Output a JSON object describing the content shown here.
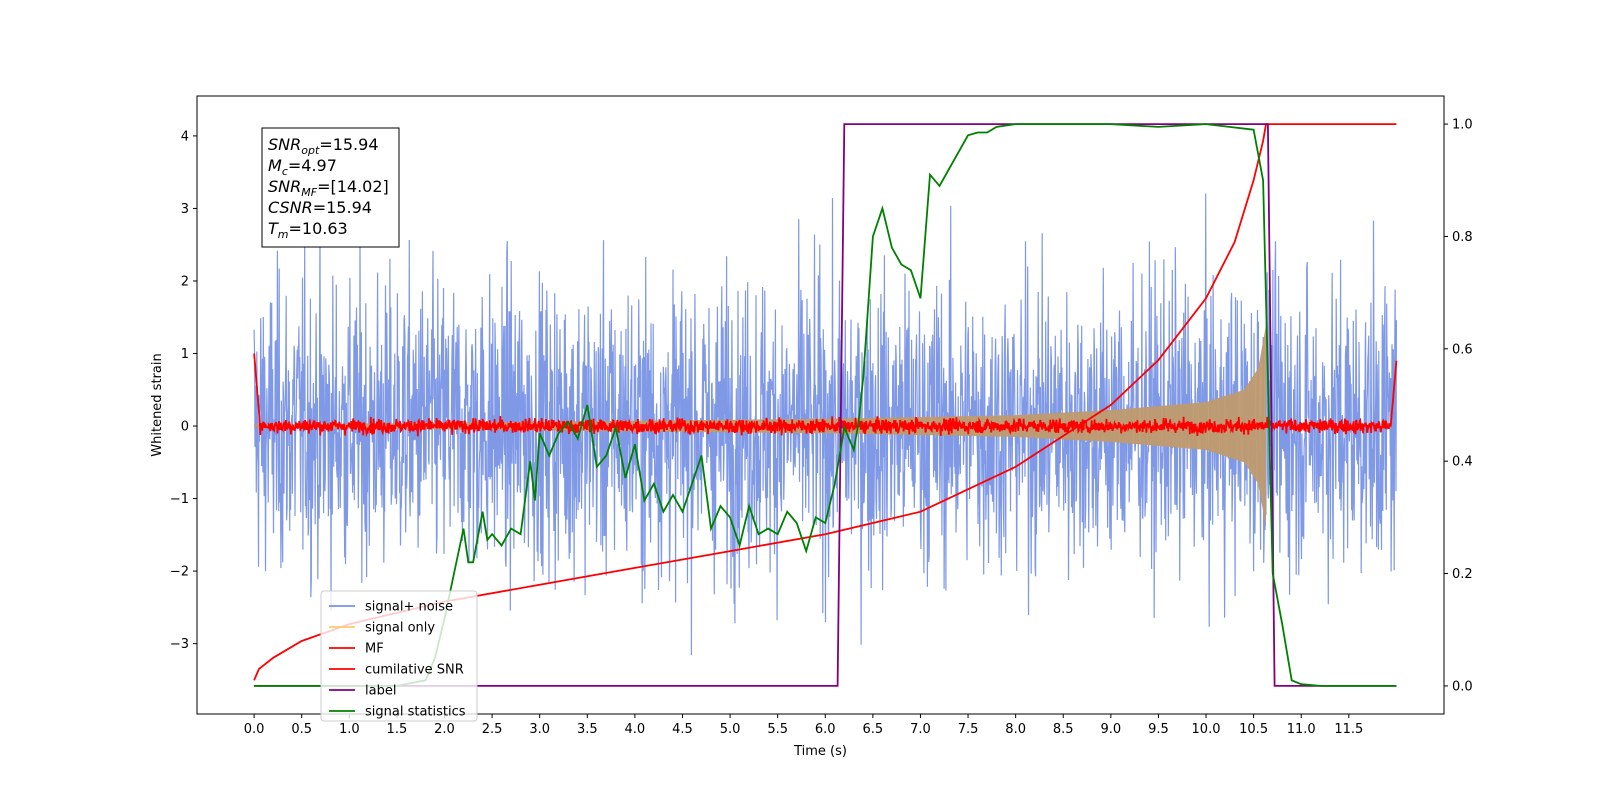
{
  "chart_data": {
    "type": "line",
    "xlabel": "Time (s)",
    "ylabel": "Whitened strain",
    "xlim": [
      -0.6,
      12.5
    ],
    "ylim": [
      -3.97,
      4.55
    ],
    "y2lim": [
      -0.05,
      1.05
    ],
    "x_ticks": [
      "0.0",
      "0.5",
      "1.0",
      "1.5",
      "2.0",
      "2.5",
      "3.0",
      "3.5",
      "4.0",
      "4.5",
      "5.0",
      "5.5",
      "6.0",
      "6.5",
      "7.0",
      "7.5",
      "8.0",
      "8.5",
      "9.0",
      "9.5",
      "10.0",
      "10.5",
      "11.0",
      "11.5"
    ],
    "y_ticks": [
      "4",
      "3",
      "2",
      "1",
      "0",
      "−1",
      "−2",
      "−3"
    ],
    "y2_ticks": [
      "1.0",
      "0.8",
      "0.6",
      "0.4",
      "0.2",
      "0.0"
    ],
    "annotation": [
      {
        "sym": "SNR",
        "sub": "opt",
        "value": "=15.94"
      },
      {
        "sym": "M",
        "sub": "c",
        "value": "=4.97"
      },
      {
        "sym": "SNR",
        "sub": "MF",
        "value": "=[14.02]"
      },
      {
        "sym": "CSNR",
        "sub": "",
        "value": "=15.94"
      },
      {
        "sym": "T",
        "sub": "m",
        "value": "=10.63"
      }
    ],
    "series": [
      {
        "name": "signal+ noise",
        "color": "#7893e6",
        "axis": "left",
        "noise_std": 1.0,
        "x_range": [
          0.0,
          12.0
        ]
      },
      {
        "name": "signal only",
        "color": "#bf9a6e",
        "axis": "left",
        "envelope": {
          "x": [
            0.0,
            6.0,
            8.0,
            9.0,
            10.0,
            10.4,
            10.55,
            10.63
          ],
          "y": [
            0.02,
            0.1,
            0.15,
            0.22,
            0.33,
            0.5,
            0.8,
            1.4
          ]
        }
      },
      {
        "name": "MF",
        "color": "#ff0000",
        "axis": "left",
        "noise_std": 0.05,
        "x_range": [
          0.0,
          12.0
        ]
      },
      {
        "name": "cumilative SNR",
        "color": "#ff0000",
        "axis": "right",
        "x": [
          0.0,
          0.05,
          0.2,
          0.5,
          1.0,
          2.0,
          3.0,
          4.0,
          5.0,
          6.0,
          7.0,
          8.0,
          9.0,
          9.5,
          10.0,
          10.3,
          10.5,
          10.6,
          10.63,
          12.0
        ],
        "y": [
          0.01,
          0.03,
          0.05,
          0.08,
          0.11,
          0.15,
          0.18,
          0.21,
          0.24,
          0.27,
          0.31,
          0.39,
          0.5,
          0.58,
          0.69,
          0.79,
          0.9,
          0.97,
          1.0,
          1.0
        ]
      },
      {
        "name": "label",
        "color": "#800080",
        "axis": "right",
        "x": [
          0.0,
          6.13,
          6.2,
          10.65,
          10.72,
          12.0
        ],
        "y": [
          0.0,
          0.0,
          1.0,
          1.0,
          0.0,
          0.0
        ]
      },
      {
        "name": "signal statistics",
        "color": "#008000",
        "axis": "right",
        "x": [
          0.0,
          1.5,
          1.8,
          1.9,
          2.0,
          2.1,
          2.2,
          2.25,
          2.3,
          2.4,
          2.45,
          2.5,
          2.6,
          2.7,
          2.8,
          2.9,
          2.95,
          3.0,
          3.1,
          3.2,
          3.3,
          3.4,
          3.5,
          3.6,
          3.7,
          3.8,
          3.9,
          4.0,
          4.1,
          4.2,
          4.3,
          4.4,
          4.5,
          4.6,
          4.7,
          4.8,
          4.9,
          5.0,
          5.1,
          5.2,
          5.3,
          5.4,
          5.5,
          5.6,
          5.7,
          5.8,
          5.9,
          6.0,
          6.1,
          6.2,
          6.3,
          6.35,
          6.4,
          6.5,
          6.6,
          6.7,
          6.8,
          6.9,
          7.0,
          7.1,
          7.2,
          7.3,
          7.4,
          7.5,
          7.6,
          7.7,
          7.8,
          8.0,
          8.5,
          9.0,
          9.5,
          10.0,
          10.5,
          10.6,
          10.7,
          10.8,
          10.9,
          11.0,
          11.2,
          11.5,
          12.0
        ],
        "y": [
          0.0,
          0.0,
          0.01,
          0.05,
          0.12,
          0.2,
          0.28,
          0.22,
          0.22,
          0.31,
          0.26,
          0.27,
          0.25,
          0.28,
          0.27,
          0.4,
          0.33,
          0.45,
          0.41,
          0.45,
          0.47,
          0.44,
          0.5,
          0.39,
          0.41,
          0.46,
          0.37,
          0.43,
          0.33,
          0.36,
          0.31,
          0.34,
          0.31,
          0.36,
          0.41,
          0.28,
          0.32,
          0.3,
          0.25,
          0.32,
          0.27,
          0.28,
          0.27,
          0.31,
          0.29,
          0.24,
          0.3,
          0.29,
          0.36,
          0.46,
          0.42,
          0.47,
          0.55,
          0.8,
          0.85,
          0.78,
          0.75,
          0.74,
          0.69,
          0.91,
          0.89,
          0.92,
          0.95,
          0.98,
          0.985,
          0.985,
          0.995,
          1.0,
          1.0,
          1.0,
          0.995,
          1.0,
          0.99,
          0.9,
          0.2,
          0.11,
          0.01,
          0.003,
          0.0,
          0.0,
          0.0
        ]
      }
    ]
  }
}
